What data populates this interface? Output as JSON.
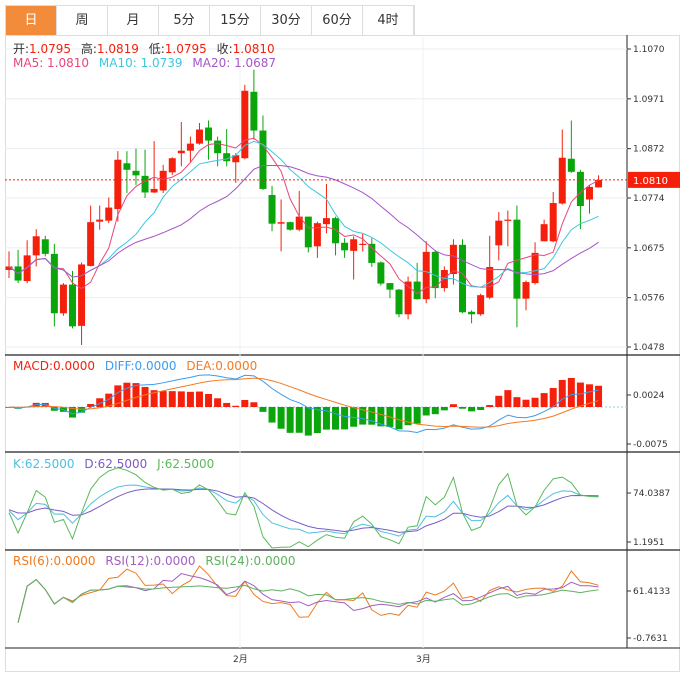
{
  "tabs": [
    {
      "label": "日",
      "active": true
    },
    {
      "label": "周"
    },
    {
      "label": "月"
    },
    {
      "label": "5分"
    },
    {
      "label": "15分"
    },
    {
      "label": "30分"
    },
    {
      "label": "60分"
    },
    {
      "label": "4时"
    }
  ],
  "ohlc_header": {
    "open_label": "开:",
    "open": "1.0795",
    "high_label": "高:",
    "high": "1.0819",
    "low_label": "低:",
    "low": "1.0795",
    "close_label": "收:",
    "close": "1.0810"
  },
  "ma_header": {
    "ma5": "MA5: 1.0810",
    "ma10": "MA10: 1.0739",
    "ma20": "MA20: 1.0687"
  },
  "macd_header": {
    "macd": "MACD:0.0000",
    "diff": "DIFF:0.0000",
    "dea": "DEA:0.0000"
  },
  "kdj_header": {
    "k": "K:62.5000",
    "d": "D:62.5000",
    "j": "J:62.5000"
  },
  "rsi_header": {
    "rsi6": "RSI(6):0.0000",
    "rsi12": "RSI(12):0.0000",
    "rsi24": "RSI(24):0.0000"
  },
  "colors": {
    "up": "#f5200c",
    "down": "#0aa50a",
    "ma5": "#e8467c",
    "ma10": "#3cc8dc",
    "ma20": "#a855c8",
    "diff": "#3a9cf0",
    "dea": "#f57a20",
    "k": "#4cc0e0",
    "d": "#7a5cc8",
    "j": "#5cb85c",
    "rsi6": "#f07a20",
    "rsi12": "#a060c0",
    "rsi24": "#60b060",
    "tab_active": "#f28b3a"
  },
  "chart_data": [
    {
      "type": "candlestick",
      "price_axis_ticks": [
        "1.1070",
        "1.0971",
        "1.0872",
        "1.0774",
        "1.0675",
        "1.0576",
        "1.0478"
      ],
      "ylim": [
        1.0478,
        1.107
      ],
      "last_price_label": "1.0810",
      "x_tick_labels": [
        "2月",
        "3月"
      ],
      "candles": [
        [
          1.0631,
          1.0668,
          1.0615,
          1.0638
        ],
        [
          1.0638,
          1.0671,
          1.0605,
          1.061
        ],
        [
          1.0609,
          1.069,
          1.0605,
          1.066
        ],
        [
          1.066,
          1.0712,
          1.0638,
          1.0698
        ],
        [
          1.0692,
          1.0699,
          1.0658,
          1.0663
        ],
        [
          1.0663,
          1.0683,
          1.0519,
          1.0545
        ],
        [
          1.0545,
          1.0605,
          1.054,
          1.0602
        ],
        [
          1.0602,
          1.0629,
          1.0515,
          1.0519
        ],
        [
          1.052,
          1.0646,
          1.0482,
          1.0642
        ],
        [
          1.0639,
          1.0759,
          1.0638,
          1.0726
        ],
        [
          1.0727,
          1.0759,
          1.0711,
          1.0731
        ],
        [
          1.0729,
          1.0775,
          1.0724,
          1.0755
        ],
        [
          1.0752,
          1.0867,
          1.0727,
          1.085
        ],
        [
          1.0843,
          1.0867,
          1.0784,
          1.083
        ],
        [
          1.0828,
          1.0872,
          1.08,
          1.0819
        ],
        [
          1.0818,
          1.087,
          1.0774,
          1.0785
        ],
        [
          1.0785,
          1.0887,
          1.0784,
          1.0792
        ],
        [
          1.0789,
          1.084,
          1.0784,
          1.0828
        ],
        [
          1.0825,
          1.0855,
          1.082,
          1.0853
        ],
        [
          1.0863,
          1.0925,
          1.0837,
          1.0868
        ],
        [
          1.0868,
          1.0896,
          1.0845,
          1.0882
        ],
        [
          1.0882,
          1.0923,
          1.088,
          1.091
        ],
        [
          1.0914,
          1.0928,
          1.085,
          1.0888
        ],
        [
          1.0888,
          1.0896,
          1.0837,
          1.0863
        ],
        [
          1.0863,
          1.0911,
          1.0837,
          1.0847
        ],
        [
          1.0845,
          1.0863,
          1.0804,
          1.0859
        ],
        [
          1.0853,
          1.0999,
          1.0851,
          1.0987
        ],
        [
          1.0985,
          1.1029,
          1.089,
          1.0908
        ],
        [
          1.0908,
          1.0938,
          1.079,
          1.0792
        ],
        [
          1.078,
          1.0798,
          1.0708,
          1.0723
        ],
        [
          1.0723,
          1.0771,
          1.0668,
          1.0726
        ],
        [
          1.0726,
          1.0727,
          1.0709,
          1.0711
        ],
        [
          1.0711,
          1.0788,
          1.0708,
          1.0737
        ],
        [
          1.0737,
          1.0737,
          1.0666,
          1.0676
        ],
        [
          1.0678,
          1.0727,
          1.0655,
          1.0724
        ],
        [
          1.0722,
          1.0802,
          1.0704,
          1.0734
        ],
        [
          1.0734,
          1.0737,
          1.066,
          1.0684
        ],
        [
          1.0685,
          1.0694,
          1.0655,
          1.067
        ],
        [
          1.0669,
          1.0698,
          1.0612,
          1.0692
        ],
        [
          1.0682,
          1.0704,
          1.0668,
          1.0683
        ],
        [
          1.0683,
          1.0694,
          1.0637,
          1.0645
        ],
        [
          1.0646,
          1.0648,
          1.06,
          1.0604
        ],
        [
          1.0605,
          1.0605,
          1.0575,
          1.0592
        ],
        [
          1.0592,
          1.0593,
          1.0537,
          1.0543
        ],
        [
          1.0543,
          1.0618,
          1.0533,
          1.0608
        ],
        [
          1.0608,
          1.0645,
          1.0572,
          1.0573
        ],
        [
          1.0573,
          1.0688,
          1.0565,
          1.0667
        ],
        [
          1.0667,
          1.0671,
          1.0575,
          1.0595
        ],
        [
          1.0595,
          1.0638,
          1.0588,
          1.0631
        ],
        [
          1.0623,
          1.0692,
          1.0602,
          1.0681
        ],
        [
          1.0681,
          1.0692,
          1.0545,
          1.0547
        ],
        [
          1.0548,
          1.0551,
          1.0525,
          1.0543
        ],
        [
          1.0543,
          1.0584,
          1.054,
          1.0581
        ],
        [
          1.0576,
          1.0699,
          1.0573,
          1.0637
        ],
        [
          1.068,
          1.0746,
          1.065,
          1.0729
        ],
        [
          1.0729,
          1.0749,
          1.0678,
          1.0731
        ],
        [
          1.0731,
          1.0759,
          1.0517,
          1.0574
        ],
        [
          1.0574,
          1.061,
          1.0551,
          1.0607
        ],
        [
          1.0605,
          1.0686,
          1.0602,
          1.0665
        ],
        [
          1.0688,
          1.0731,
          1.0688,
          1.0722
        ],
        [
          1.0688,
          1.0786,
          1.0686,
          1.0764
        ],
        [
          1.0763,
          1.091,
          1.0761,
          1.0854
        ],
        [
          1.0852,
          1.0928,
          1.0824,
          1.0826
        ],
        [
          1.0826,
          1.083,
          1.0712,
          1.0758
        ],
        [
          1.0771,
          1.08,
          1.0743,
          1.0796
        ],
        [
          1.0795,
          1.0819,
          1.0795,
          1.081
        ]
      ]
    },
    {
      "type": "bar+line",
      "name": "MACD",
      "axis_ticks": [
        "0.0024",
        "-0.0075"
      ],
      "ylim": [
        -0.0075,
        0.0024
      ]
    },
    {
      "type": "line",
      "name": "KDJ",
      "axis_ticks": [
        "74.0387",
        "1.1951"
      ]
    },
    {
      "type": "line",
      "name": "RSI",
      "axis_ticks": [
        "61.4133",
        "-0.7631"
      ]
    }
  ]
}
